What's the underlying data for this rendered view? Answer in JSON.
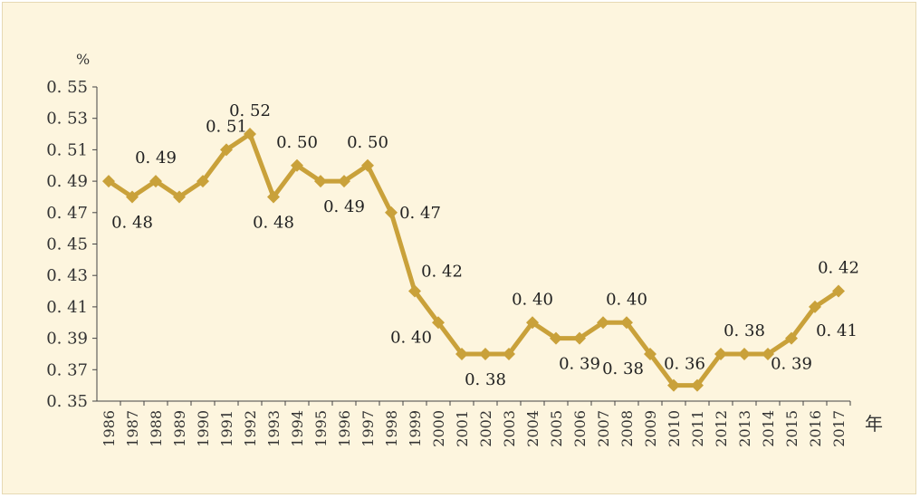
{
  "chart_data": {
    "type": "line",
    "title": "",
    "ylabel": "%",
    "xlabel": "年",
    "ylim": [
      0.35,
      0.55
    ],
    "yticks": [
      "0. 35",
      "0. 37",
      "0. 39",
      "0. 41",
      "0. 43",
      "0. 45",
      "0. 47",
      "0. 49",
      "0. 51",
      "0. 53",
      "0. 55"
    ],
    "x": [
      "1986",
      "1987",
      "1988",
      "1989",
      "1990",
      "1991",
      "1992",
      "1993",
      "1994",
      "1995",
      "1996",
      "1997",
      "1998",
      "1999",
      "2000",
      "2001",
      "2002",
      "2003",
      "2004",
      "2005",
      "2006",
      "2007",
      "2008",
      "2009",
      "2010",
      "2011",
      "2012",
      "2013",
      "2014",
      "2015",
      "2016",
      "2017"
    ],
    "series": [
      {
        "values": [
          0.49,
          0.48,
          0.49,
          0.48,
          0.49,
          0.51,
          0.52,
          0.48,
          0.5,
          0.49,
          0.49,
          0.5,
          0.47,
          0.42,
          0.4,
          0.38,
          0.38,
          0.38,
          0.4,
          0.39,
          0.39,
          0.4,
          0.4,
          0.38,
          0.36,
          0.36,
          0.38,
          0.38,
          0.38,
          0.39,
          0.41,
          0.42
        ]
      }
    ],
    "line_color": "#c9a13a",
    "grid": false,
    "data_labels": [
      {
        "index": 1,
        "text": "0. 48",
        "pos": "below"
      },
      {
        "index": 2,
        "text": "0. 49",
        "pos": "above"
      },
      {
        "index": 5,
        "text": "0. 51",
        "pos": "above"
      },
      {
        "index": 6,
        "text": "0. 52",
        "pos": "above"
      },
      {
        "index": 7,
        "text": "0. 48",
        "pos": "below"
      },
      {
        "index": 8,
        "text": "0. 50",
        "pos": "above"
      },
      {
        "index": 10,
        "text": "0. 49",
        "pos": "below"
      },
      {
        "index": 11,
        "text": "0. 50",
        "pos": "above"
      },
      {
        "index": 12,
        "text": "0. 47",
        "pos": "right"
      },
      {
        "index": 13,
        "text": "0. 42",
        "pos": "above-right"
      },
      {
        "index": 14,
        "text": "0. 40",
        "pos": "below-left"
      },
      {
        "index": 16,
        "text": "0. 38",
        "pos": "below"
      },
      {
        "index": 18,
        "text": "0. 40",
        "pos": "above"
      },
      {
        "index": 20,
        "text": "0. 39",
        "pos": "below"
      },
      {
        "index": 22,
        "text": "0. 40",
        "pos": "above"
      },
      {
        "index": 23,
        "text": "0. 38",
        "pos": "below-left"
      },
      {
        "index": 25,
        "text": "0. 36",
        "pos": "above-left"
      },
      {
        "index": 27,
        "text": "0. 38",
        "pos": "above"
      },
      {
        "index": 29,
        "text": "0. 39",
        "pos": "below"
      },
      {
        "index": 30,
        "text": "0. 41",
        "pos": "below-right"
      },
      {
        "index": 31,
        "text": "0. 42",
        "pos": "above"
      }
    ]
  }
}
